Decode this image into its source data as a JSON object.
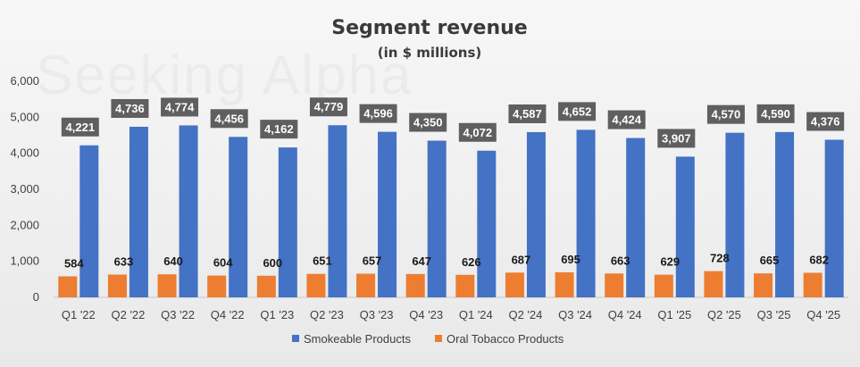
{
  "chart_data": {
    "type": "bar",
    "title": "Segment revenue",
    "subtitle": "(in $ millions)",
    "watermark": "Seeking Alpha",
    "categories": [
      "Q1 '22",
      "Q2 '22",
      "Q3 '22",
      "Q4 '22",
      "Q1 '23",
      "Q2 '23",
      "Q3 '23",
      "Q4 '23",
      "Q1 '24",
      "Q2 '24",
      "Q3 '24",
      "Q4 '24",
      "Q1 '25",
      "Q2 '25",
      "Q3 '25",
      "Q4 '25"
    ],
    "series": [
      {
        "name": "Smokeable Products",
        "color": "#4472C4",
        "values": [
          4221,
          4736,
          4774,
          4456,
          4162,
          4779,
          4596,
          4350,
          4072,
          4587,
          4652,
          4424,
          3907,
          4570,
          4590,
          4376
        ]
      },
      {
        "name": "Oral Tobacco Products",
        "color": "#ED7D31",
        "values": [
          584,
          633,
          640,
          604,
          600,
          651,
          657,
          647,
          626,
          687,
          695,
          663,
          629,
          728,
          665,
          682
        ]
      }
    ],
    "ylim": [
      0,
      6000
    ],
    "yticks": [
      0,
      1000,
      2000,
      3000,
      4000,
      5000,
      6000
    ],
    "ytick_labels": [
      "0",
      "1,000",
      "2,000",
      "3,000",
      "4,000",
      "5,000",
      "6,000"
    ],
    "legend": "bottom",
    "grid": false
  }
}
